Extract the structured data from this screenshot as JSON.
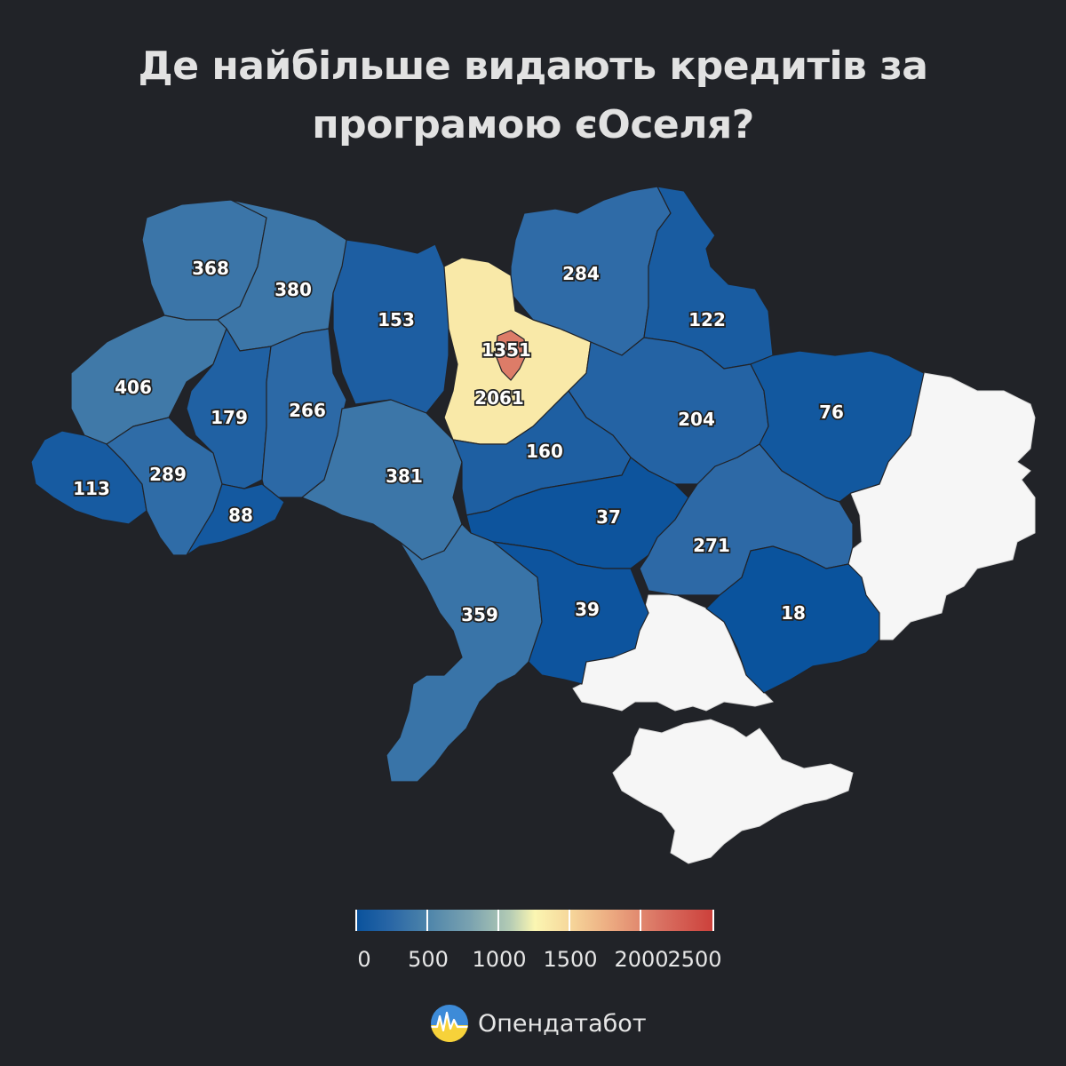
{
  "title_line1": "Де найбільше видають кредитів за",
  "title_line2": "програмою єОселя?",
  "map_data": {
    "type": "choropleth",
    "region_values": [
      368,
      380,
      153,
      284,
      122,
      406,
      179,
      266,
      1351,
      2061,
      204,
      76,
      113,
      289,
      88,
      381,
      160,
      37,
      271,
      359,
      39,
      18
    ],
    "color_scale": {
      "min": 0,
      "max": 2500,
      "low_color": "#08519c",
      "mid_color": "#fbf6b2",
      "high_color": "#cc3f3a",
      "no_data_color": "#f6f6f6"
    }
  },
  "legend": {
    "ticks": [
      "0",
      "500",
      "1000",
      "1500",
      "2000",
      "2500"
    ]
  },
  "brand": {
    "name": "Опендатабот",
    "logo": "opendatabot-logo"
  }
}
